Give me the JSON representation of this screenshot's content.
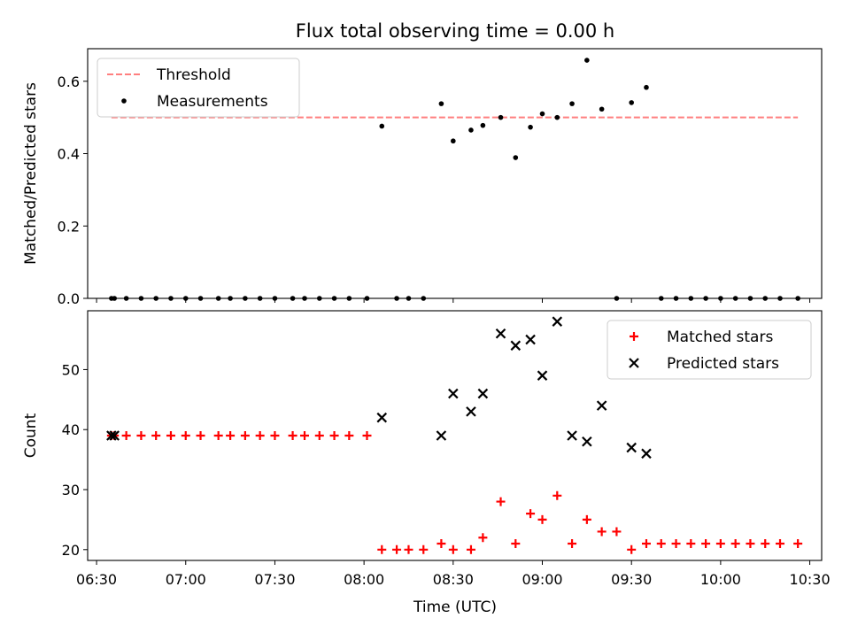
{
  "figure": {
    "title": "Flux total observing time = 0.00 h",
    "xlabel": "Time (UTC)"
  },
  "chart_data": [
    {
      "type": "scatter",
      "panel": "top",
      "ylabel": "Matched/Predicted stars",
      "xlim": [
        "06:27",
        "10:34"
      ],
      "ylim": [
        0,
        0.69
      ],
      "yticks": [
        0.0,
        0.2,
        0.4,
        0.6
      ],
      "ytick_labels": [
        "0.0",
        "0.2",
        "0.4",
        "0.6"
      ],
      "legend": {
        "placement": "top-left",
        "entries": [
          "Threshold",
          "Measurements"
        ]
      },
      "threshold": {
        "name": "Threshold",
        "value": 0.5,
        "x_range": [
          "06:35",
          "10:26"
        ],
        "color": "#ff7f7f",
        "style": "dashed"
      },
      "series": [
        {
          "name": "Measurements",
          "color": "#000000",
          "marker": "dot",
          "points": [
            [
              "06:35",
              0
            ],
            [
              "06:36",
              0
            ],
            [
              "06:40",
              0
            ],
            [
              "06:45",
              0
            ],
            [
              "06:50",
              0
            ],
            [
              "06:55",
              0
            ],
            [
              "07:00",
              0
            ],
            [
              "07:05",
              0
            ],
            [
              "07:11",
              0
            ],
            [
              "07:15",
              0
            ],
            [
              "07:20",
              0
            ],
            [
              "07:25",
              0
            ],
            [
              "07:30",
              0
            ],
            [
              "07:36",
              0
            ],
            [
              "07:40",
              0
            ],
            [
              "07:45",
              0
            ],
            [
              "07:50",
              0
            ],
            [
              "07:55",
              0
            ],
            [
              "08:01",
              0
            ],
            [
              "08:06",
              0.476
            ],
            [
              "08:11",
              0
            ],
            [
              "08:15",
              0
            ],
            [
              "08:20",
              0
            ],
            [
              "08:26",
              0.538
            ],
            [
              "08:30",
              0.435
            ],
            [
              "08:36",
              0.465
            ],
            [
              "08:40",
              0.478
            ],
            [
              "08:46",
              0.5
            ],
            [
              "08:51",
              0.389
            ],
            [
              "08:56",
              0.473
            ],
            [
              "09:00",
              0.51
            ],
            [
              "09:05",
              0.5
            ],
            [
              "09:10",
              0.538
            ],
            [
              "09:15",
              0.658
            ],
            [
              "09:20",
              0.523
            ],
            [
              "09:25",
              0
            ],
            [
              "09:30",
              0.541
            ],
            [
              "09:35",
              0.583
            ],
            [
              "09:40",
              0
            ],
            [
              "09:45",
              0
            ],
            [
              "09:50",
              0
            ],
            [
              "09:55",
              0
            ],
            [
              "10:00",
              0
            ],
            [
              "10:05",
              0
            ],
            [
              "10:10",
              0
            ],
            [
              "10:15",
              0
            ],
            [
              "10:20",
              0
            ],
            [
              "10:26",
              0
            ]
          ]
        }
      ]
    },
    {
      "type": "scatter",
      "panel": "bottom",
      "ylabel": "Count",
      "xlabel": "Time (UTC)",
      "xlim": [
        "06:27",
        "10:34"
      ],
      "ylim": [
        18.2,
        59.8
      ],
      "yticks": [
        20,
        30,
        40,
        50
      ],
      "ytick_labels": [
        "20",
        "30",
        "40",
        "50"
      ],
      "xticks": [
        "06:30",
        "07:00",
        "07:30",
        "08:00",
        "08:30",
        "09:00",
        "09:30",
        "10:00",
        "10:30"
      ],
      "legend": {
        "placement": "top-right",
        "entries": [
          "Matched stars",
          "Predicted stars"
        ]
      },
      "series": [
        {
          "name": "Matched stars",
          "color": "#ff0000",
          "marker": "plus",
          "points": [
            [
              "06:35",
              39
            ],
            [
              "06:36",
              39
            ],
            [
              "06:40",
              39
            ],
            [
              "06:45",
              39
            ],
            [
              "06:50",
              39
            ],
            [
              "06:55",
              39
            ],
            [
              "07:00",
              39
            ],
            [
              "07:05",
              39
            ],
            [
              "07:11",
              39
            ],
            [
              "07:15",
              39
            ],
            [
              "07:20",
              39
            ],
            [
              "07:25",
              39
            ],
            [
              "07:30",
              39
            ],
            [
              "07:36",
              39
            ],
            [
              "07:40",
              39
            ],
            [
              "07:45",
              39
            ],
            [
              "07:50",
              39
            ],
            [
              "07:55",
              39
            ],
            [
              "08:01",
              39
            ],
            [
              "08:06",
              20
            ],
            [
              "08:11",
              20
            ],
            [
              "08:15",
              20
            ],
            [
              "08:20",
              20
            ],
            [
              "08:26",
              21
            ],
            [
              "08:30",
              20
            ],
            [
              "08:36",
              20
            ],
            [
              "08:40",
              22
            ],
            [
              "08:46",
              28
            ],
            [
              "08:51",
              21
            ],
            [
              "08:56",
              26
            ],
            [
              "09:00",
              25
            ],
            [
              "09:05",
              29
            ],
            [
              "09:10",
              21
            ],
            [
              "09:15",
              25
            ],
            [
              "09:20",
              23
            ],
            [
              "09:25",
              23
            ],
            [
              "09:30",
              20
            ],
            [
              "09:35",
              21
            ],
            [
              "09:40",
              21
            ],
            [
              "09:45",
              21
            ],
            [
              "09:50",
              21
            ],
            [
              "09:55",
              21
            ],
            [
              "10:00",
              21
            ],
            [
              "10:05",
              21
            ],
            [
              "10:10",
              21
            ],
            [
              "10:15",
              21
            ],
            [
              "10:20",
              21
            ],
            [
              "10:26",
              21
            ]
          ]
        },
        {
          "name": "Predicted stars",
          "color": "#000000",
          "marker": "x",
          "points": [
            [
              "06:35",
              39
            ],
            [
              "06:36",
              39
            ],
            [
              "08:06",
              42
            ],
            [
              "08:26",
              39
            ],
            [
              "08:30",
              46
            ],
            [
              "08:36",
              43
            ],
            [
              "08:40",
              46
            ],
            [
              "08:46",
              56
            ],
            [
              "08:51",
              54
            ],
            [
              "08:56",
              55
            ],
            [
              "09:00",
              49
            ],
            [
              "09:05",
              58
            ],
            [
              "09:10",
              39
            ],
            [
              "09:15",
              38
            ],
            [
              "09:20",
              44
            ],
            [
              "09:30",
              37
            ],
            [
              "09:35",
              36
            ]
          ]
        }
      ]
    }
  ]
}
